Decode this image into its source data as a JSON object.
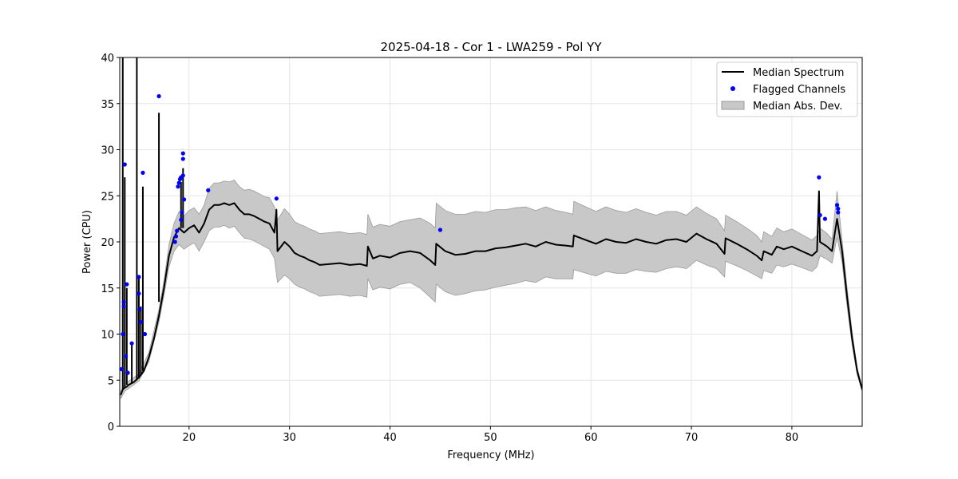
{
  "chart_data": {
    "type": "line",
    "title": "2025-04-18 - Cor 1 - LWA259 - Pol YY",
    "xlabel": "Frequency (MHz)",
    "ylabel": "Power (CPU)",
    "xlim": [
      13.1,
      87.0
    ],
    "ylim": [
      0,
      40
    ],
    "xticks": [
      20,
      30,
      40,
      50,
      60,
      70,
      80
    ],
    "yticks": [
      0,
      5,
      10,
      15,
      20,
      25,
      30,
      35,
      40
    ],
    "grid": true,
    "legend_position": "top-right",
    "legend": {
      "median": "Median Spectrum",
      "flagged": "Flagged Channels",
      "mad": "Median Abs. Dev."
    },
    "colors": {
      "median": "#000000",
      "flagged": "#0000ff",
      "mad_fill": "#c8c8c8",
      "mad_edge": "#9a9a9a",
      "grid": "#e6e6e6"
    },
    "median_spectrum": [
      [
        13.2,
        3.4
      ],
      [
        13.4,
        4.0
      ],
      [
        13.6,
        4.2
      ],
      [
        13.8,
        4.3
      ],
      [
        14.0,
        4.5
      ],
      [
        14.5,
        4.8
      ],
      [
        15.0,
        5.3
      ],
      [
        15.5,
        6.0
      ],
      [
        16.0,
        7.5
      ],
      [
        16.5,
        9.5
      ],
      [
        17.0,
        12.0
      ],
      [
        17.5,
        15.0
      ],
      [
        18.0,
        18.5
      ],
      [
        18.5,
        20.5
      ],
      [
        19.0,
        21.5
      ],
      [
        19.5,
        21.0
      ],
      [
        20.0,
        21.5
      ],
      [
        20.5,
        21.8
      ],
      [
        21.0,
        21.0
      ],
      [
        21.5,
        22.0
      ],
      [
        22.0,
        23.5
      ],
      [
        22.5,
        24.0
      ],
      [
        23.0,
        24.0
      ],
      [
        23.5,
        24.2
      ],
      [
        24.0,
        24.0
      ],
      [
        24.5,
        24.2
      ],
      [
        25.0,
        23.5
      ],
      [
        25.5,
        23.0
      ],
      [
        26.0,
        23.0
      ],
      [
        26.5,
        22.8
      ],
      [
        27.0,
        22.5
      ],
      [
        27.5,
        22.2
      ],
      [
        28.0,
        22.0
      ],
      [
        28.5,
        21.0
      ],
      [
        28.7,
        23.5
      ],
      [
        28.8,
        19.0
      ],
      [
        29.5,
        20.0
      ],
      [
        30.0,
        19.5
      ],
      [
        30.5,
        18.8
      ],
      [
        31.0,
        18.5
      ],
      [
        31.5,
        18.3
      ],
      [
        32.0,
        18.0
      ],
      [
        32.5,
        17.8
      ],
      [
        33.0,
        17.5
      ],
      [
        34.0,
        17.6
      ],
      [
        35.0,
        17.7
      ],
      [
        36.0,
        17.5
      ],
      [
        37.0,
        17.6
      ],
      [
        37.7,
        17.4
      ],
      [
        37.8,
        19.5
      ],
      [
        38.3,
        18.2
      ],
      [
        39.0,
        18.5
      ],
      [
        40.0,
        18.3
      ],
      [
        41.0,
        18.8
      ],
      [
        42.0,
        19.0
      ],
      [
        43.0,
        18.8
      ],
      [
        44.0,
        18.0
      ],
      [
        44.5,
        17.5
      ],
      [
        44.6,
        19.8
      ],
      [
        45.5,
        19.0
      ],
      [
        46.5,
        18.6
      ],
      [
        47.5,
        18.7
      ],
      [
        48.5,
        19.0
      ],
      [
        49.5,
        19.0
      ],
      [
        50.5,
        19.3
      ],
      [
        51.5,
        19.4
      ],
      [
        52.5,
        19.6
      ],
      [
        53.5,
        19.8
      ],
      [
        54.5,
        19.5
      ],
      [
        55.5,
        20.0
      ],
      [
        56.5,
        19.7
      ],
      [
        57.5,
        19.6
      ],
      [
        58.2,
        19.5
      ],
      [
        58.3,
        20.7
      ],
      [
        59.5,
        20.2
      ],
      [
        60.5,
        19.8
      ],
      [
        61.5,
        20.3
      ],
      [
        62.5,
        20.0
      ],
      [
        63.5,
        19.9
      ],
      [
        64.5,
        20.3
      ],
      [
        65.5,
        20.0
      ],
      [
        66.5,
        19.8
      ],
      [
        67.5,
        20.2
      ],
      [
        68.5,
        20.3
      ],
      [
        69.5,
        20.0
      ],
      [
        70.5,
        20.9
      ],
      [
        71.5,
        20.3
      ],
      [
        72.5,
        19.8
      ],
      [
        73.3,
        18.7
      ],
      [
        73.4,
        20.4
      ],
      [
        74.5,
        19.8
      ],
      [
        75.5,
        19.2
      ],
      [
        76.5,
        18.5
      ],
      [
        77.0,
        18.0
      ],
      [
        77.2,
        19.0
      ],
      [
        78.0,
        18.6
      ],
      [
        78.5,
        19.5
      ],
      [
        79.2,
        19.2
      ],
      [
        80.0,
        19.5
      ],
      [
        81.0,
        19.0
      ],
      [
        82.0,
        18.5
      ],
      [
        82.5,
        19.0
      ],
      [
        82.7,
        25.5
      ],
      [
        82.8,
        20.0
      ],
      [
        83.5,
        19.5
      ],
      [
        84.0,
        19.0
      ],
      [
        84.5,
        22.5
      ],
      [
        85.0,
        19.0
      ],
      [
        85.5,
        14.0
      ],
      [
        86.0,
        9.5
      ],
      [
        86.5,
        6.0
      ],
      [
        87.0,
        4.0
      ]
    ],
    "mad_band": [
      [
        13.2,
        3.0,
        3.8
      ],
      [
        13.6,
        3.8,
        4.6
      ],
      [
        14.0,
        4.1,
        4.9
      ],
      [
        15.0,
        4.9,
        5.7
      ],
      [
        16.0,
        7.0,
        8.0
      ],
      [
        17.0,
        11.3,
        12.7
      ],
      [
        17.5,
        14.2,
        15.8
      ],
      [
        18.0,
        17.3,
        19.7
      ],
      [
        18.5,
        19.0,
        22.0
      ],
      [
        19.0,
        19.7,
        23.3
      ],
      [
        19.5,
        19.2,
        22.8
      ],
      [
        20.0,
        19.6,
        23.4
      ],
      [
        20.5,
        19.9,
        23.7
      ],
      [
        21.0,
        19.0,
        23.0
      ],
      [
        21.5,
        20.0,
        24.0
      ],
      [
        22.0,
        21.2,
        25.8
      ],
      [
        22.5,
        21.6,
        26.4
      ],
      [
        23.0,
        21.6,
        26.4
      ],
      [
        23.5,
        21.8,
        26.6
      ],
      [
        24.0,
        21.5,
        26.5
      ],
      [
        24.5,
        21.7,
        26.7
      ],
      [
        25.0,
        21.0,
        26.0
      ],
      [
        25.5,
        20.4,
        25.6
      ],
      [
        26.0,
        20.3,
        25.7
      ],
      [
        26.5,
        20.1,
        25.5
      ],
      [
        27.0,
        19.8,
        25.2
      ],
      [
        27.5,
        19.5,
        24.9
      ],
      [
        28.0,
        19.2,
        24.8
      ],
      [
        28.5,
        18.2,
        23.8
      ],
      [
        28.8,
        15.6,
        22.4
      ],
      [
        29.5,
        16.4,
        23.6
      ],
      [
        30.0,
        16.0,
        23.0
      ],
      [
        30.5,
        15.4,
        22.2
      ],
      [
        31.0,
        15.1,
        21.9
      ],
      [
        31.5,
        14.9,
        21.7
      ],
      [
        32.0,
        14.6,
        21.4
      ],
      [
        32.5,
        14.4,
        21.2
      ],
      [
        33.0,
        14.1,
        20.9
      ],
      [
        34.0,
        14.2,
        21.0
      ],
      [
        35.0,
        14.3,
        21.1
      ],
      [
        36.0,
        14.1,
        20.9
      ],
      [
        37.0,
        14.2,
        21.0
      ],
      [
        37.7,
        14.0,
        20.8
      ],
      [
        37.8,
        16.0,
        23.0
      ],
      [
        38.3,
        14.8,
        21.6
      ],
      [
        39.0,
        15.1,
        21.9
      ],
      [
        40.0,
        14.9,
        21.7
      ],
      [
        41.0,
        15.4,
        22.2
      ],
      [
        42.0,
        15.6,
        22.4
      ],
      [
        43.0,
        15.0,
        22.6
      ],
      [
        44.0,
        14.0,
        22.0
      ],
      [
        44.5,
        13.5,
        21.5
      ],
      [
        44.6,
        15.4,
        24.2
      ],
      [
        45.5,
        14.6,
        23.4
      ],
      [
        46.5,
        14.2,
        23.0
      ],
      [
        47.5,
        14.4,
        23.0
      ],
      [
        48.5,
        14.7,
        23.3
      ],
      [
        49.5,
        14.8,
        23.2
      ],
      [
        50.5,
        15.1,
        23.5
      ],
      [
        51.5,
        15.3,
        23.5
      ],
      [
        52.5,
        15.5,
        23.7
      ],
      [
        53.5,
        15.8,
        23.8
      ],
      [
        54.5,
        15.6,
        23.4
      ],
      [
        55.5,
        16.2,
        23.8
      ],
      [
        56.5,
        16.0,
        23.4
      ],
      [
        57.5,
        16.0,
        23.2
      ],
      [
        58.2,
        16.0,
        23.0
      ],
      [
        58.3,
        17.0,
        24.4
      ],
      [
        59.5,
        16.6,
        23.8
      ],
      [
        60.5,
        16.3,
        23.3
      ],
      [
        61.5,
        16.8,
        23.8
      ],
      [
        62.5,
        16.6,
        23.4
      ],
      [
        63.5,
        16.6,
        23.2
      ],
      [
        64.5,
        17.0,
        23.6
      ],
      [
        65.5,
        16.8,
        23.2
      ],
      [
        66.5,
        16.7,
        22.9
      ],
      [
        67.5,
        17.1,
        23.3
      ],
      [
        68.5,
        17.3,
        23.3
      ],
      [
        69.5,
        17.1,
        22.9
      ],
      [
        70.5,
        18.0,
        23.8
      ],
      [
        71.5,
        17.5,
        23.1
      ],
      [
        72.5,
        17.1,
        22.5
      ],
      [
        73.3,
        16.2,
        21.2
      ],
      [
        73.4,
        17.9,
        22.9
      ],
      [
        74.5,
        17.4,
        22.2
      ],
      [
        75.5,
        16.9,
        21.5
      ],
      [
        76.5,
        16.3,
        20.7
      ],
      [
        77.0,
        16.0,
        20.0
      ],
      [
        77.2,
        16.9,
        21.1
      ],
      [
        78.0,
        16.6,
        20.6
      ],
      [
        78.5,
        17.5,
        21.5
      ],
      [
        79.2,
        17.3,
        21.1
      ],
      [
        80.0,
        17.6,
        21.4
      ],
      [
        81.0,
        17.2,
        20.8
      ],
      [
        82.0,
        16.8,
        20.2
      ],
      [
        82.5,
        17.3,
        20.7
      ],
      [
        82.8,
        18.5,
        21.5
      ],
      [
        83.5,
        18.1,
        20.9
      ],
      [
        84.0,
        17.7,
        20.3
      ],
      [
        84.5,
        20.5,
        25.5
      ],
      [
        85.0,
        17.8,
        20.2
      ],
      [
        85.5,
        13.0,
        15.0
      ],
      [
        86.0,
        8.8,
        10.2
      ],
      [
        86.5,
        5.6,
        6.4
      ],
      [
        87.0,
        3.8,
        4.2
      ]
    ],
    "spikes": [
      [
        13.4,
        4.0,
        40.0
      ],
      [
        13.6,
        4.3,
        27.0
      ],
      [
        13.8,
        4.5,
        15.0
      ],
      [
        14.3,
        4.7,
        9.0
      ],
      [
        14.8,
        5.0,
        40.0
      ],
      [
        15.0,
        5.2,
        16.0
      ],
      [
        15.2,
        5.6,
        13.0
      ],
      [
        15.4,
        6.0,
        26.0
      ],
      [
        17.0,
        13.5,
        34.0
      ],
      [
        19.2,
        21.5,
        26.5
      ],
      [
        19.4,
        21.5,
        28.0
      ]
    ],
    "flagged_channels": [
      [
        13.3,
        6.2
      ],
      [
        13.4,
        10.0
      ],
      [
        13.5,
        13.0
      ],
      [
        13.5,
        13.5
      ],
      [
        13.6,
        28.4
      ],
      [
        13.7,
        7.6
      ],
      [
        13.8,
        15.4
      ],
      [
        13.9,
        5.8
      ],
      [
        14.3,
        9.0
      ],
      [
        15.0,
        16.2
      ],
      [
        15.0,
        14.4
      ],
      [
        15.2,
        11.3
      ],
      [
        15.1,
        12.7
      ],
      [
        15.4,
        27.5
      ],
      [
        15.6,
        10.0
      ],
      [
        17.0,
        35.8
      ],
      [
        18.6,
        20.0
      ],
      [
        18.7,
        20.6
      ],
      [
        18.8,
        21.2
      ],
      [
        18.9,
        26.0
      ],
      [
        19.0,
        26.4
      ],
      [
        19.1,
        26.8
      ],
      [
        19.2,
        27.0
      ],
      [
        19.2,
        22.4
      ],
      [
        19.3,
        23.2
      ],
      [
        19.4,
        27.2
      ],
      [
        19.4,
        29.0
      ],
      [
        19.4,
        29.6
      ],
      [
        19.5,
        24.6
      ],
      [
        21.9,
        25.6
      ],
      [
        28.7,
        24.7
      ],
      [
        45.0,
        21.3
      ],
      [
        82.7,
        27.0
      ],
      [
        82.8,
        22.9
      ],
      [
        83.3,
        22.5
      ],
      [
        84.5,
        24.0
      ],
      [
        84.6,
        23.6
      ],
      [
        84.6,
        23.2
      ]
    ]
  }
}
